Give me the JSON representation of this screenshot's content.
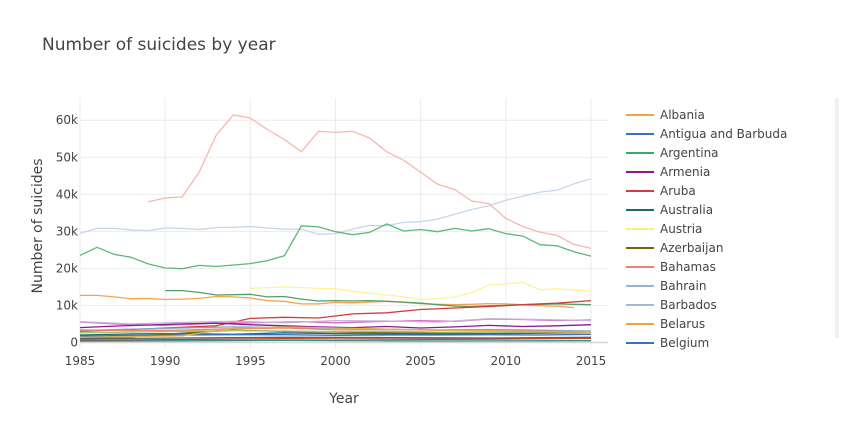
{
  "chart_data": {
    "type": "line",
    "title": "Number of suicides by year",
    "xlabel": "Year",
    "ylabel": "Number of suicides",
    "xlim": [
      1985,
      2016
    ],
    "ylim": [
      -1500,
      66000
    ],
    "x_ticks": [
      1985,
      1990,
      1995,
      2000,
      2005,
      2010,
      2015
    ],
    "y_ticks": [
      0,
      10000,
      20000,
      30000,
      40000,
      50000,
      60000
    ],
    "y_tick_labels": [
      "0",
      "10k",
      "20k",
      "30k",
      "40k",
      "50k",
      "60k"
    ],
    "grid": true,
    "legend_position": "right",
    "legend": [
      {
        "name": "Albania",
        "color": "#f4a14b"
      },
      {
        "name": "Antigua and Barbuda",
        "color": "#3a6fbf"
      },
      {
        "name": "Argentina",
        "color": "#3fa85b"
      },
      {
        "name": "Armenia",
        "color": "#8b1a8f"
      },
      {
        "name": "Aruba",
        "color": "#d2383c"
      },
      {
        "name": "Australia",
        "color": "#1a6a7a"
      },
      {
        "name": "Austria",
        "color": "#f5f07a"
      },
      {
        "name": "Azerbaijan",
        "color": "#6e6a10"
      },
      {
        "name": "Bahamas",
        "color": "#f08070"
      },
      {
        "name": "Bahrain",
        "color": "#8fb6d8"
      },
      {
        "name": "Barbados",
        "color": "#9fb8d6"
      },
      {
        "name": "Belarus",
        "color": "#f4a14b"
      },
      {
        "name": "Belgium",
        "color": "#3a6fbf"
      }
    ],
    "series": [
      {
        "color": "#f6b7ad",
        "x": [
          1989,
          1990,
          1991,
          1992,
          1993,
          1994,
          1995,
          1996,
          1997,
          1998,
          1999,
          2000,
          2001,
          2002,
          2003,
          2004,
          2005,
          2006,
          2007,
          2008,
          2009,
          2010,
          2011,
          2012,
          2013,
          2014,
          2015
        ],
        "y": [
          38000,
          39000,
          39300,
          46000,
          56000,
          61400,
          60600,
          57500,
          54800,
          51500,
          57000,
          56700,
          57000,
          55200,
          51500,
          49200,
          46000,
          42700,
          41300,
          38200,
          37500,
          33500,
          31300,
          29800,
          28900,
          26500,
          25400
        ]
      },
      {
        "color": "#c5d6ea",
        "x": [
          1985,
          1986,
          1987,
          1988,
          1989,
          1990,
          1991,
          1992,
          1993,
          1994,
          1995,
          1996,
          1997,
          1998,
          1999,
          2000,
          2001,
          2002,
          2003,
          2004,
          2005,
          2006,
          2007,
          2008,
          2009,
          2010,
          2011,
          2012,
          2013,
          2014,
          2015
        ],
        "y": [
          29500,
          30800,
          30800,
          30400,
          30200,
          30900,
          30800,
          30500,
          31000,
          31100,
          31300,
          30900,
          30600,
          30600,
          29200,
          29400,
          30600,
          31600,
          31500,
          32400,
          32600,
          33300,
          34600,
          35900,
          36900,
          38400,
          39500,
          40600,
          41100,
          42800,
          44200
        ]
      },
      {
        "color": "#5cb877",
        "x": [
          1985,
          1986,
          1987,
          1988,
          1989,
          1990,
          1991,
          1992,
          1993,
          1994,
          1995,
          1996,
          1997,
          1998,
          1999,
          2000,
          2001,
          2002,
          2003,
          2004,
          2005,
          2006,
          2007,
          2008,
          2009,
          2010,
          2011,
          2012,
          2013,
          2014,
          2015
        ],
        "y": [
          23500,
          25700,
          23800,
          23000,
          21200,
          20100,
          19900,
          20800,
          20500,
          20900,
          21300,
          22100,
          23400,
          31500,
          31200,
          29900,
          29100,
          29700,
          32000,
          30100,
          30500,
          29900,
          30800,
          30100,
          30700,
          29400,
          28700,
          26400,
          26100,
          24500,
          23300
        ]
      },
      {
        "color": "#f6a24e",
        "x": [
          1985,
          1986,
          1987,
          1988,
          1989,
          1990,
          1991,
          1992,
          1993,
          1994,
          1995,
          1996,
          1997,
          1998,
          1999,
          2000,
          2001,
          2002,
          2003,
          2004,
          2005,
          2006,
          2007,
          2008,
          2009,
          2010,
          2011,
          2012,
          2013,
          2014,
          2015
        ],
        "y": [
          12700,
          12700,
          12300,
          11800,
          11900,
          11600,
          11700,
          11900,
          12400,
          12300,
          12000,
          11300,
          11100,
          10400,
          10400,
          10800,
          10700,
          10900,
          11100,
          10800,
          10500,
          10300,
          10200,
          10300,
          10500,
          10400,
          10200,
          9900,
          9800,
          9400,
          null
        ]
      },
      {
        "color": "#4fa06a",
        "x": [
          1990,
          1991,
          1992,
          1993,
          1994,
          1995,
          1996,
          1997,
          1998,
          1999,
          2000,
          2001,
          2002,
          2003,
          2004,
          2005,
          2006,
          2007,
          2008,
          2009,
          2010,
          2011,
          2012,
          2013,
          2014,
          2015
        ],
        "y": [
          14000,
          14000,
          13500,
          12800,
          12900,
          13000,
          12300,
          12400,
          11700,
          11200,
          11300,
          11200,
          11300,
          11100,
          10900,
          10600,
          10200,
          9800,
          9700,
          9900,
          10000,
          10200,
          10300,
          10400,
          10300,
          10200
        ]
      },
      {
        "color": "#fbf49a",
        "x": [
          1995,
          1996,
          1997,
          1998,
          1999,
          2000,
          2001,
          2002,
          2003,
          2004,
          2005,
          2006,
          2007,
          2008,
          2009,
          2010,
          2011,
          2012,
          2013,
          2014,
          2015
        ],
        "y": [
          14600,
          14800,
          15000,
          14800,
          14600,
          14500,
          13800,
          13300,
          12800,
          12300,
          11600,
          11800,
          12300,
          13400,
          15500,
          15800,
          16200,
          14200,
          14500,
          14100,
          13900
        ]
      },
      {
        "color": "#d43a3a",
        "x": [
          1985,
          1988,
          1990,
          1993,
          1995,
          1997,
          1999,
          2001,
          2003,
          2005,
          2007,
          2009,
          2011,
          2013,
          2015
        ],
        "y": [
          3000,
          3500,
          3900,
          4500,
          6500,
          6800,
          6600,
          7700,
          8000,
          8900,
          9300,
          9700,
          10200,
          10600,
          11300
        ]
      },
      {
        "color": "#d56ec6",
        "x": [
          1985,
          1988,
          1990,
          1993,
          1995,
          1998,
          2000,
          2003,
          2005,
          2007,
          2009,
          2011,
          2013,
          2015
        ],
        "y": [
          5500,
          4800,
          4600,
          5200,
          5300,
          5600,
          5300,
          5700,
          5900,
          5700,
          6300,
          6200,
          5900,
          6100
        ]
      },
      {
        "color": "#8b1a8f",
        "x": [
          1985,
          1987,
          1989,
          1991,
          1993,
          1995,
          1997,
          1999,
          2001,
          2003,
          2005,
          2007,
          2009,
          2011,
          2013,
          2015
        ],
        "y": [
          4000,
          4400,
          4700,
          5000,
          5200,
          4800,
          4500,
          4200,
          4000,
          4300,
          3900,
          4200,
          4600,
          4300,
          4500,
          4800
        ]
      },
      {
        "color": "#c8b0d8",
        "x": [
          1985,
          1988,
          1991,
          1994,
          1997,
          2000,
          2003,
          2006,
          2009,
          2012,
          2015
        ],
        "y": [
          5600,
          5000,
          5400,
          5700,
          5300,
          5900,
          5800,
          5500,
          6400,
          6200,
          5900
        ]
      },
      {
        "color": "#1a6a7a",
        "x": [
          1985,
          1988,
          1991,
          1994,
          1997,
          2000,
          2003,
          2006,
          2009,
          2012,
          2015
        ],
        "y": [
          2000,
          2300,
          2400,
          2200,
          2600,
          2400,
          2300,
          2200,
          2300,
          2500,
          2700
        ]
      },
      {
        "color": "#3a6fbf",
        "x": [
          1985,
          1988,
          1991,
          1994,
          1997,
          2000,
          2003,
          2006,
          2009,
          2012,
          2015
        ],
        "y": [
          1700,
          1900,
          2000,
          2100,
          2100,
          1900,
          2000,
          2000,
          2100,
          2000,
          2200
        ]
      },
      {
        "color": "#6e6a10",
        "x": [
          1985,
          1988,
          1991,
          1994,
          1997,
          2000,
          2003,
          2006,
          2009,
          2012,
          2015
        ],
        "y": [
          1200,
          1500,
          2500,
          3300,
          3000,
          2800,
          2600,
          2500,
          2500,
          2600,
          2700
        ]
      },
      {
        "color": "#7fa7c9",
        "x": [
          1985,
          1988,
          1991,
          1994,
          1997,
          2000,
          2003,
          2006,
          2009,
          2012,
          2015
        ],
        "y": [
          3200,
          3600,
          3900,
          4200,
          4000,
          3800,
          3600,
          3400,
          3500,
          3300,
          3100
        ]
      },
      {
        "color": "#f08070",
        "x": [
          1985,
          1988,
          1991,
          1994,
          1997,
          2000,
          2003,
          2006,
          2009,
          2012,
          2015
        ],
        "y": [
          3400,
          3200,
          3300,
          3700,
          3900,
          3400,
          3500,
          3300,
          3200,
          3000,
          2900
        ]
      },
      {
        "color": "#a0c56a",
        "x": [
          1985,
          1988,
          1991,
          1994,
          1997,
          2000,
          2003,
          2006,
          2009,
          2012,
          2015
        ],
        "y": [
          2600,
          2800,
          3000,
          3200,
          3100,
          2900,
          3000,
          2800,
          2700,
          2800,
          2900
        ]
      },
      {
        "color": "#e0b050",
        "x": [
          1985,
          1988,
          1991,
          1994,
          1997,
          2000,
          2003,
          2006,
          2009,
          2012,
          2015
        ],
        "y": [
          1400,
          1600,
          1800,
          3800,
          4200,
          3900,
          3600,
          3300,
          3100,
          2900,
          2700
        ]
      },
      {
        "color": "#606060",
        "x": [
          1985,
          1988,
          1991,
          1994,
          1997,
          2000,
          2003,
          2006,
          2009,
          2012,
          2015
        ],
        "y": [
          1000,
          1100,
          1200,
          1300,
          1400,
          1350,
          1300,
          1250,
          1200,
          1300,
          1400
        ]
      },
      {
        "color": "#b34a2a",
        "x": [
          1985,
          1988,
          1991,
          1994,
          1997,
          2000,
          2003,
          2006,
          2009,
          2012,
          2015
        ],
        "y": [
          600,
          700,
          800,
          900,
          1000,
          950,
          900,
          850,
          900,
          1000,
          1100
        ]
      },
      {
        "color": "#2e8b8b",
        "x": [
          1985,
          1988,
          1991,
          1994,
          1997,
          2000,
          2003,
          2006,
          2009,
          2012,
          2015
        ],
        "y": [
          350,
          400,
          450,
          500,
          550,
          500,
          450,
          400,
          420,
          450,
          480
        ]
      }
    ]
  }
}
